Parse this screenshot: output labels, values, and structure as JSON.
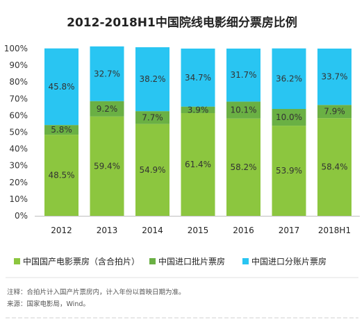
{
  "chart_data": {
    "type": "bar",
    "stacked": true,
    "title": "2012-2018H1中国院线电影细分票房比例",
    "categories": [
      "2012",
      "2013",
      "2014",
      "2015",
      "2016",
      "2017",
      "2018H1"
    ],
    "y_ticks": [
      "0%",
      "10%",
      "20%",
      "30%",
      "40%",
      "50%",
      "60%",
      "70%",
      "80%",
      "90%",
      "100%"
    ],
    "ylim": [
      0,
      100
    ],
    "grid": false,
    "legend_position": "bottom",
    "series": [
      {
        "name": "中国国产电影票房（含合拍片）",
        "color": "#8cc63f",
        "values": [
          48.5,
          59.4,
          54.9,
          61.4,
          58.2,
          53.9,
          58.4
        ],
        "labels": [
          "48.5%",
          "59.4%",
          "54.9%",
          "61.4%",
          "58.2%",
          "53.9%",
          "58.4%"
        ]
      },
      {
        "name": "中国进口批片票房",
        "color": "#6ab044",
        "values": [
          5.8,
          9.2,
          7.7,
          3.9,
          10.1,
          10.0,
          7.9
        ],
        "labels": [
          "5.8%",
          "9.2%",
          "7.7%",
          "3.9%",
          "10.1%",
          "10.0%",
          "7.9%"
        ]
      },
      {
        "name": "中国进口分账片票房",
        "color": "#29c5f2",
        "values": [
          45.8,
          32.7,
          38.2,
          34.7,
          31.7,
          36.2,
          33.7
        ],
        "labels": [
          "45.8%",
          "32.7%",
          "38.2%",
          "34.7%",
          "31.7%",
          "36.2%",
          "33.7%"
        ]
      }
    ]
  },
  "notes": {
    "note": "注释：合拍片计入国产片票房内，计入年份以首映日期为准。",
    "source": "来源：国家电影局，Wind。"
  }
}
